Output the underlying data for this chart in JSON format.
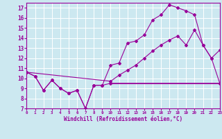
{
  "title": "",
  "xlabel": "Windchill (Refroidissement éolien,°C)",
  "bg_color": "#cce8f0",
  "line_color": "#990099",
  "grid_color": "#ffffff",
  "xlim": [
    0,
    23
  ],
  "ylim": [
    7,
    17.5
  ],
  "xticks": [
    0,
    1,
    2,
    3,
    4,
    5,
    6,
    7,
    8,
    9,
    10,
    11,
    12,
    13,
    14,
    15,
    16,
    17,
    18,
    19,
    20,
    21,
    22,
    23
  ],
  "yticks": [
    7,
    8,
    9,
    10,
    11,
    12,
    13,
    14,
    15,
    16,
    17
  ],
  "line1_x": [
    0,
    1,
    2,
    3,
    4,
    5,
    6,
    7,
    8,
    9,
    10,
    11,
    12,
    13,
    14,
    15,
    16,
    17,
    18,
    19,
    20,
    21,
    22,
    23
  ],
  "line1_y": [
    10.6,
    10.2,
    8.8,
    9.8,
    9.0,
    8.5,
    8.8,
    7.0,
    9.3,
    9.3,
    11.3,
    11.5,
    13.5,
    13.7,
    14.3,
    15.8,
    16.3,
    17.3,
    17.0,
    16.7,
    16.3,
    13.3,
    12.0,
    12.8
  ],
  "line2_x": [
    0,
    1,
    2,
    3,
    4,
    5,
    6,
    7,
    8,
    9,
    10,
    23
  ],
  "line2_y": [
    10.6,
    10.2,
    8.8,
    9.8,
    9.0,
    8.5,
    8.8,
    7.0,
    9.3,
    9.3,
    9.5,
    9.5
  ],
  "line3_x": [
    0,
    10,
    11,
    12,
    13,
    14,
    15,
    16,
    17,
    18,
    19,
    20,
    21,
    22,
    23
  ],
  "line3_y": [
    10.6,
    9.7,
    10.3,
    10.8,
    11.3,
    12.0,
    12.7,
    13.3,
    13.8,
    14.2,
    13.3,
    14.8,
    13.3,
    12.0,
    9.5
  ],
  "line4_x": [
    10,
    23
  ],
  "line4_y": [
    9.5,
    9.5
  ]
}
